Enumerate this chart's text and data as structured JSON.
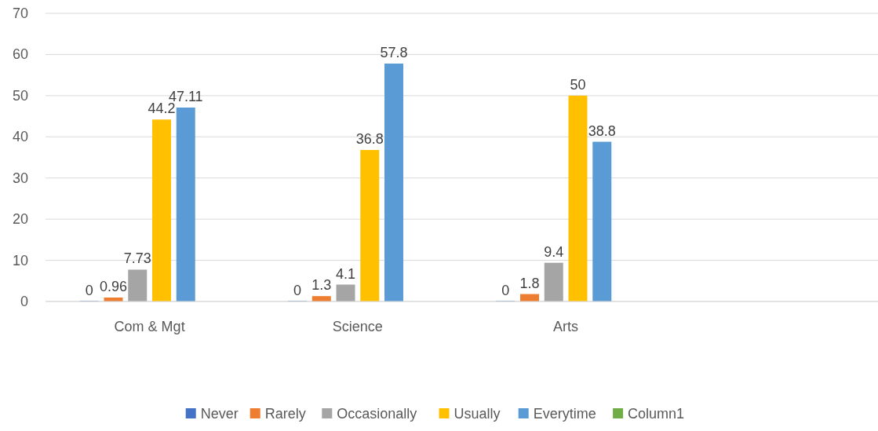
{
  "chart_data": {
    "type": "bar",
    "categories": [
      "Com & Mgt",
      "Science",
      "Arts",
      null
    ],
    "series": [
      {
        "name": "Never",
        "color": "#4472c4",
        "values": [
          0,
          0,
          0,
          null
        ]
      },
      {
        "name": "Rarely",
        "color": "#ed7d31",
        "values": [
          0.96,
          1.3,
          1.8,
          null
        ]
      },
      {
        "name": "Occasionally",
        "color": "#a5a5a5",
        "values": [
          7.73,
          4.1,
          9.4,
          null
        ]
      },
      {
        "name": "Usually",
        "color": "#ffc000",
        "values": [
          44.2,
          36.8,
          50,
          null
        ]
      },
      {
        "name": "Everytime",
        "color": "#5b9bd5",
        "values": [
          47.11,
          57.8,
          38.8,
          null
        ]
      },
      {
        "name": "Column1",
        "color": "#70ad47",
        "values": [
          null,
          null,
          null,
          null
        ]
      }
    ],
    "ylim": [
      0,
      70
    ],
    "yticks": [
      0,
      10,
      20,
      30,
      40,
      50,
      60,
      70
    ],
    "grid": "y",
    "legend": "bottom",
    "data_labels": true
  }
}
